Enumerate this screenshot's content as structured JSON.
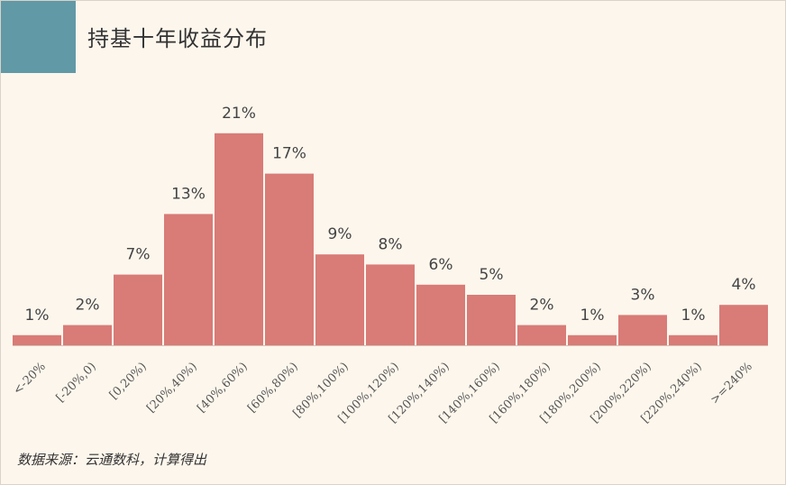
{
  "title": "持基十年收益分布",
  "source": "数据来源：云通数科，计算得出",
  "colors": {
    "bar": "#d97b77",
    "accent": "#6199a6",
    "background": "#fdf6ec",
    "text": "#333333"
  },
  "chart_data": {
    "type": "bar",
    "title": "持基十年收益分布",
    "categories": [
      "<-20%",
      "[-20%,0)",
      "[0,20%)",
      "[20%,40%)",
      "[40%,60%)",
      "[60%,80%)",
      "[80%,100%)",
      "[100%,120%)",
      "[120%,140%)",
      "[140%,160%)",
      "[160%,180%)",
      "[180%,200%)",
      "[200%,220%)",
      "[220%,240%)",
      ">=240%"
    ],
    "values": [
      1,
      2,
      7,
      13,
      21,
      17,
      9,
      8,
      6,
      5,
      2,
      1,
      3,
      1,
      4
    ],
    "labels": [
      "1%",
      "2%",
      "7%",
      "13%",
      "21%",
      "17%",
      "9%",
      "8%",
      "6%",
      "5%",
      "2%",
      "1%",
      "3%",
      "1%",
      "4%"
    ],
    "xlabel": "",
    "ylabel": "",
    "grid": false,
    "legend": "none"
  }
}
